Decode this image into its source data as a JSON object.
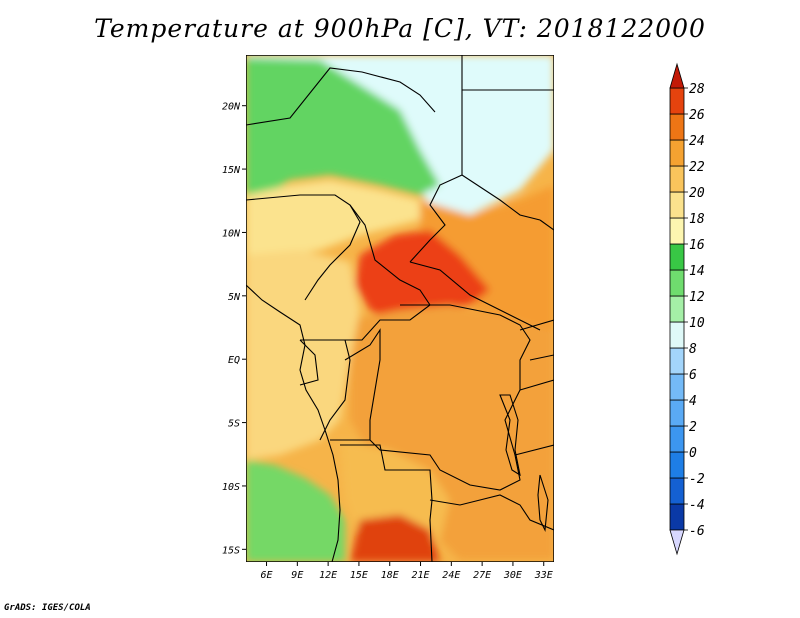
{
  "title": "Temperature at 900hPa [C], VT: 2018122000",
  "credit": "GrADS: IGES/COLA",
  "map": {
    "projection": "latlon",
    "lon_range": [
      4,
      34
    ],
    "lat_range": [
      -16,
      24
    ],
    "lon_ticks": [
      "6E",
      "9E",
      "12E",
      "15E",
      "18E",
      "21E",
      "24E",
      "27E",
      "30E",
      "33E"
    ],
    "lat_ticks": [
      "20N",
      "15N",
      "10N",
      "5N",
      "EQ",
      "5S",
      "10S",
      "15S"
    ],
    "regions": [
      {
        "name": "north-sahara",
        "color": "#dffbfb"
      },
      {
        "name": "north-green",
        "color": "#62d462"
      },
      {
        "name": "west-sahel",
        "color": "#fbe38e"
      },
      {
        "name": "east-sahel",
        "color": "#f59c32"
      },
      {
        "name": "central-hot",
        "color": "#ec3f14"
      },
      {
        "name": "congo",
        "color": "#f3a13b"
      },
      {
        "name": "gabon-coast",
        "color": "#fad77e"
      },
      {
        "name": "angola-green",
        "color": "#74d866"
      },
      {
        "name": "angola-plateau",
        "color": "#f6bc50"
      },
      {
        "name": "south-hot",
        "color": "#e0420f"
      }
    ]
  },
  "colorbar": {
    "levels": [
      "-6",
      "-4",
      "-2",
      "0",
      "2",
      "4",
      "6",
      "8",
      "10",
      "12",
      "14",
      "16",
      "18",
      "20",
      "22",
      "24",
      "26",
      "28"
    ],
    "colors": [
      "#08116e",
      "#0a39a6",
      "#1460d2",
      "#1e7ee6",
      "#3c96f0",
      "#5aaaf5",
      "#74baf7",
      "#a3d5fb",
      "#dff9f8",
      "#a5efa7",
      "#6fdc6e",
      "#38c745",
      "#fdf6b0",
      "#fbe28d",
      "#f9c45c",
      "#f5a231",
      "#ed7515",
      "#e5430e",
      "#c31a07"
    ],
    "below_color": "#d8d8ff",
    "above_color": "#c31a07"
  }
}
